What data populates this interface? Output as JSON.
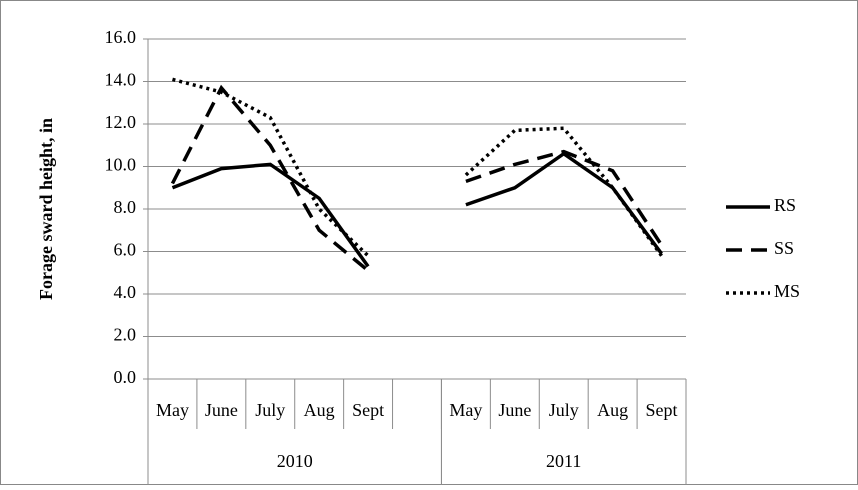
{
  "chart_data": {
    "type": "line",
    "y_label": "Forage sward height, in",
    "categories": [
      "May",
      "June",
      "July",
      "Aug",
      "Sept",
      null,
      "May",
      "June",
      "July",
      "Aug",
      "Sept"
    ],
    "groups": [
      "2010",
      "2011"
    ],
    "series": [
      {
        "name": "RS",
        "color": "#000000",
        "dash": "solid",
        "values": [
          9.0,
          9.9,
          10.1,
          8.5,
          5.3,
          null,
          8.2,
          9.0,
          10.6,
          9.0,
          5.9
        ]
      },
      {
        "name": "SS",
        "color": "#000000",
        "dash": "dashed",
        "values": [
          9.2,
          13.7,
          11.0,
          7.0,
          5.1,
          null,
          9.3,
          10.1,
          10.7,
          9.8,
          6.3
        ]
      },
      {
        "name": "MS",
        "color": "#000000",
        "dash": "dotted",
        "values": [
          14.1,
          13.5,
          12.3,
          8.0,
          5.8,
          null,
          9.6,
          11.7,
          11.8,
          9.0,
          5.8
        ]
      }
    ],
    "ylim": [
      0,
      16
    ],
    "yticks": [
      {
        "value": 0,
        "label": "0.0"
      },
      {
        "value": 2,
        "label": "2.0"
      },
      {
        "value": 4,
        "label": "4.0"
      },
      {
        "value": 6,
        "label": "6.0"
      },
      {
        "value": 8,
        "label": "8.0"
      },
      {
        "value": 10,
        "label": "10.0"
      },
      {
        "value": 12,
        "label": "12.0"
      },
      {
        "value": 14,
        "label": "14.0"
      },
      {
        "value": 16,
        "label": "16.0"
      }
    ],
    "grid": true,
    "legend": "right"
  }
}
